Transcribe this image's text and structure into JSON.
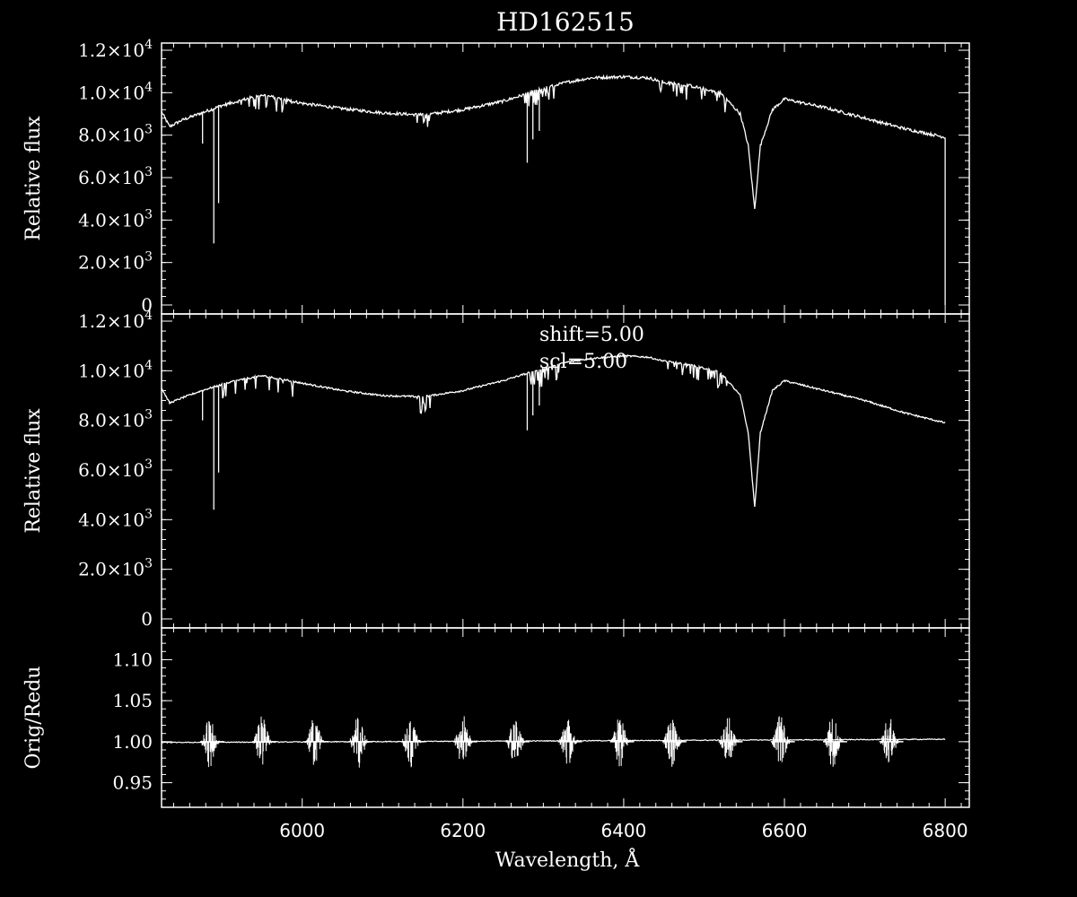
{
  "colors": {
    "background": "#000000",
    "foreground": "#ffffff"
  },
  "title": "HD162515",
  "xlabel": "Wavelength, Å",
  "x_tick_labels": [
    "6000",
    "6200",
    "6400",
    "6600",
    "6800"
  ],
  "annotations": [
    "shift=5.00",
    "scl=5.00"
  ],
  "chart_data": [
    {
      "type": "line",
      "panel": "top",
      "ylabel": "Relative flux",
      "xlim": [
        5825,
        6830
      ],
      "ylim": [
        0,
        12000
      ],
      "y_ticks": [
        {
          "value": 0,
          "mant": "0",
          "exp": ""
        },
        {
          "value": 2000,
          "mant": "2.0×10",
          "exp": "3"
        },
        {
          "value": 4000,
          "mant": "4.0×10",
          "exp": "3"
        },
        {
          "value": 6000,
          "mant": "6.0×10",
          "exp": "3"
        },
        {
          "value": 8000,
          "mant": "8.0×10",
          "exp": "3"
        },
        {
          "value": 10000,
          "mant": "1.0×10",
          "exp": "4"
        },
        {
          "value": 12000,
          "mant": "1.2×10",
          "exp": "4"
        }
      ],
      "series": [
        {
          "x": [
            5825,
            5835,
            5850,
            5875,
            5890,
            5896,
            5910,
            5950,
            6000,
            6050,
            6100,
            6150,
            6200,
            6250,
            6280,
            6300,
            6330,
            6360,
            6400,
            6430,
            6450,
            6480,
            6520,
            6545,
            6555,
            6563,
            6570,
            6585,
            6600,
            6650,
            6700,
            6750,
            6800
          ],
          "y": [
            9100,
            8400,
            8700,
            9050,
            9250,
            9350,
            9500,
            9900,
            9500,
            9250,
            9050,
            8950,
            9200,
            9600,
            9950,
            10200,
            10500,
            10700,
            10750,
            10700,
            10500,
            10350,
            10000,
            9000,
            7500,
            4500,
            7500,
            9200,
            9700,
            9300,
            8800,
            8300,
            7900
          ]
        }
      ],
      "absorption_lines": [
        {
          "x": 5890,
          "depth": 2900
        },
        {
          "x": 5896,
          "depth": 4800
        },
        {
          "x": 5876,
          "depth": 7600
        },
        {
          "x": 6280,
          "depth": 6700
        },
        {
          "x": 6287,
          "depth": 7800
        },
        {
          "x": 6295,
          "depth": 8200
        }
      ]
    },
    {
      "type": "line",
      "panel": "middle",
      "ylabel": "Relative flux",
      "xlim": [
        5825,
        6830
      ],
      "ylim": [
        0,
        12000
      ],
      "y_ticks": [
        {
          "value": 0,
          "mant": "0",
          "exp": ""
        },
        {
          "value": 2000,
          "mant": "2.0×10",
          "exp": "3"
        },
        {
          "value": 4000,
          "mant": "4.0×10",
          "exp": "3"
        },
        {
          "value": 6000,
          "mant": "6.0×10",
          "exp": "3"
        },
        {
          "value": 8000,
          "mant": "8.0×10",
          "exp": "3"
        },
        {
          "value": 10000,
          "mant": "1.0×10",
          "exp": "4"
        },
        {
          "value": 12000,
          "mant": "1.2×10",
          "exp": "4"
        }
      ],
      "series": [
        {
          "x": [
            5825,
            5835,
            5850,
            5875,
            5890,
            5896,
            5910,
            5950,
            6000,
            6050,
            6100,
            6150,
            6200,
            6250,
            6280,
            6300,
            6330,
            6360,
            6400,
            6430,
            6450,
            6480,
            6520,
            6545,
            6555,
            6563,
            6570,
            6585,
            6600,
            6650,
            6700,
            6750,
            6800
          ],
          "y": [
            9300,
            8700,
            8900,
            9200,
            9350,
            9400,
            9550,
            9800,
            9500,
            9200,
            9000,
            8950,
            9200,
            9600,
            9900,
            10100,
            10350,
            10500,
            10600,
            10550,
            10400,
            10250,
            9950,
            9000,
            7500,
            4500,
            7500,
            9200,
            9600,
            9200,
            8800,
            8300,
            7900
          ]
        }
      ],
      "absorption_lines": [
        {
          "x": 5890,
          "depth": 4400
        },
        {
          "x": 5896,
          "depth": 5900
        },
        {
          "x": 5876,
          "depth": 8000
        },
        {
          "x": 6280,
          "depth": 7600
        },
        {
          "x": 6287,
          "depth": 8200
        },
        {
          "x": 6295,
          "depth": 8600
        }
      ]
    },
    {
      "type": "line",
      "panel": "bottom",
      "ylabel": "Orig/Redu",
      "xlim": [
        5825,
        6830
      ],
      "ylim": [
        0.92,
        1.13
      ],
      "y_ticks": [
        {
          "value": 0.95,
          "mant": "0.95",
          "exp": ""
        },
        {
          "value": 1.0,
          "mant": "1.00",
          "exp": ""
        },
        {
          "value": 1.05,
          "mant": "1.05",
          "exp": ""
        },
        {
          "value": 1.1,
          "mant": "1.10",
          "exp": ""
        }
      ],
      "series": [
        {
          "x": [
            5825,
            6800
          ],
          "y": [
            0.999,
            1.003
          ]
        }
      ],
      "order_bursts": [
        5885,
        5950,
        6015,
        6070,
        6135,
        6200,
        6265,
        6330,
        6395,
        6460,
        6530,
        6595,
        6660,
        6730
      ],
      "burst_amplitude": 0.025
    }
  ]
}
